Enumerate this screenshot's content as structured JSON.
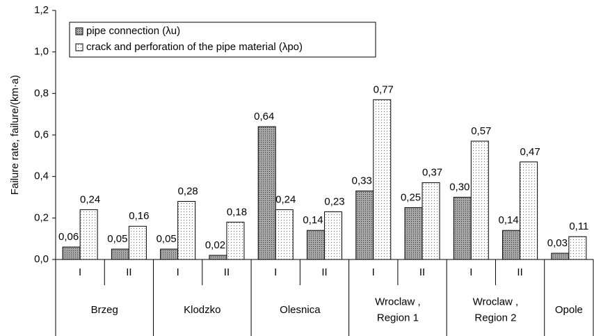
{
  "chart_data": {
    "type": "bar",
    "y_label": "Failure rate, failure/(km·a)",
    "groups": [
      {
        "label": [
          "Brzeg"
        ],
        "categories": [
          "I",
          "II"
        ]
      },
      {
        "label": [
          "Klodzko"
        ],
        "categories": [
          "I",
          "II"
        ]
      },
      {
        "label": [
          "Olesnica"
        ],
        "categories": [
          "I",
          "II"
        ]
      },
      {
        "label": [
          "Wroclaw ,",
          "Region 1"
        ],
        "categories": [
          "I",
          "II"
        ]
      },
      {
        "label": [
          "Wroclaw ,",
          "Region 2"
        ],
        "categories": [
          "I",
          "II"
        ]
      },
      {
        "label": [
          "Opole"
        ],
        "categories": [
          null
        ]
      }
    ],
    "series": [
      {
        "name": "pipe connection (λu)",
        "color": "#a6a6a6",
        "values": [
          0.06,
          0.05,
          0.05,
          0.02,
          0.64,
          0.14,
          0.33,
          0.25,
          0.3,
          0.14,
          0.03
        ],
        "value_labels": [
          "0,06",
          "0,05",
          "0,05",
          "0,02",
          "0,64",
          "0,14",
          "0,33",
          "0,25",
          "0,30",
          "0,14",
          "0,03"
        ]
      },
      {
        "name": "crack and perforation of the pipe material (λpo)",
        "color": "#ffffff",
        "values": [
          0.24,
          0.16,
          0.28,
          0.18,
          0.24,
          0.23,
          0.77,
          0.37,
          0.57,
          0.47,
          0.11
        ],
        "value_labels": [
          "0,24",
          "0,16",
          "0,28",
          "0,18",
          "0,24",
          "0,23",
          "0,77",
          "0,37",
          "0,57",
          "0,47",
          "0,11"
        ]
      }
    ],
    "ylim": [
      0,
      1.2
    ],
    "yticks": [
      {
        "value": 0,
        "label": "0,0"
      },
      {
        "value": 0.2,
        "label": "0,2"
      },
      {
        "value": 0.4,
        "label": "0,4"
      },
      {
        "value": 0.6,
        "label": "0,6"
      },
      {
        "value": 0.8,
        "label": "0,8"
      },
      {
        "value": 1.0,
        "label": "1,0"
      },
      {
        "value": 1.2,
        "label": "1,2"
      }
    ],
    "legend": "top-left"
  }
}
